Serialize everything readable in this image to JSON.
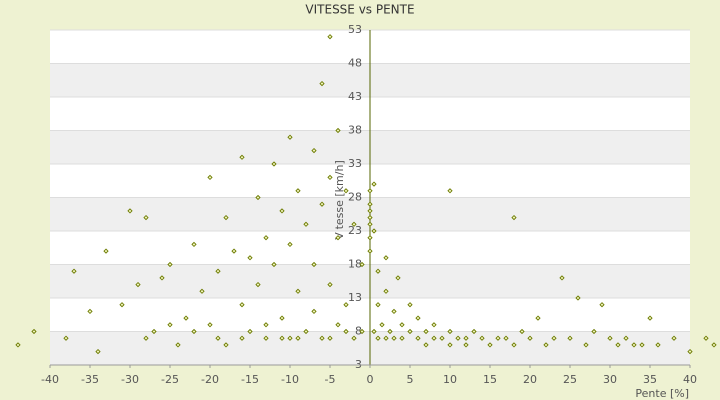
{
  "chart_data": {
    "type": "scatter",
    "title": "VITESSE vs PENTE",
    "x_label": "Pente [%]",
    "y_label": "Vitesse [km/h]",
    "xlim": [
      -40,
      40
    ],
    "xticks": [
      -40,
      -35,
      -30,
      -25,
      -20,
      -15,
      -10,
      -5,
      0,
      5,
      10,
      15,
      20,
      25,
      30,
      35,
      40
    ],
    "ylim": [
      3,
      53
    ],
    "yticks": [
      3,
      8,
      13,
      18,
      23,
      28,
      33,
      38,
      43,
      48,
      53
    ],
    "grid": true,
    "series": [
      {
        "name": "Vitesse",
        "color": "#6b7a00",
        "x": [
          -44,
          -42,
          -38,
          -37,
          -35,
          -33,
          -31,
          -30,
          -29,
          -28,
          -27,
          -26,
          -25,
          -24,
          -23,
          -22,
          -21,
          -20,
          -20,
          -19,
          -18,
          -18,
          -17,
          -16,
          -16,
          -15,
          -15,
          -14,
          -14,
          -13,
          -13,
          -12,
          -12,
          -11,
          -11,
          -10,
          -10,
          -10,
          -9,
          -9,
          -8,
          -8,
          -7,
          -7,
          -7,
          -6,
          -6,
          -6,
          -5,
          -5,
          -5,
          -4,
          -4,
          -4,
          -3,
          -3,
          -2,
          -2,
          -1,
          -1,
          0,
          0,
          0,
          0,
          0,
          0,
          0,
          0.5,
          0.5,
          0.5,
          1,
          1,
          1,
          1.5,
          2,
          2,
          2,
          2.5,
          3,
          3,
          3.5,
          4,
          4,
          5,
          5,
          6,
          6,
          7,
          7,
          8,
          8,
          9,
          10,
          10,
          10,
          11,
          12,
          12,
          13,
          14,
          15,
          16,
          17,
          18,
          18,
          19,
          20,
          21,
          22,
          23,
          24,
          25,
          26,
          27,
          28,
          29,
          30,
          31,
          32,
          33,
          34,
          35,
          36,
          38,
          40,
          42,
          43,
          -34,
          -28,
          -25,
          -22,
          -19,
          -16,
          -13,
          -11,
          -9,
          -5,
          -3
        ],
        "values": [
          6,
          8,
          7,
          17,
          11,
          20,
          12,
          26,
          15,
          25,
          8,
          16,
          18,
          6,
          10,
          21,
          14,
          31,
          9,
          17,
          25,
          6,
          20,
          34,
          12,
          19,
          8,
          28,
          15,
          22,
          7,
          33,
          18,
          26,
          10,
          37,
          21,
          7,
          29,
          14,
          24,
          8,
          35,
          18,
          11,
          45,
          27,
          7,
          52,
          31,
          15,
          38,
          22,
          9,
          29,
          12,
          24,
          7,
          18,
          8,
          20,
          22,
          24,
          25,
          26,
          27,
          29,
          23,
          8,
          30,
          17,
          7,
          12,
          9,
          14,
          7,
          19,
          8,
          11,
          7,
          16,
          9,
          7,
          8,
          12,
          7,
          10,
          8,
          6,
          7,
          9,
          7,
          6,
          8,
          29,
          7,
          7,
          6,
          8,
          7,
          6,
          7,
          7,
          25,
          6,
          8,
          7,
          10,
          6,
          7,
          16,
          7,
          13,
          6,
          8,
          12,
          7,
          6,
          7,
          6,
          6,
          10,
          6,
          7,
          5,
          7,
          6,
          5,
          7,
          9,
          8,
          7,
          7,
          9,
          7,
          7,
          7,
          8
        ]
      }
    ]
  }
}
